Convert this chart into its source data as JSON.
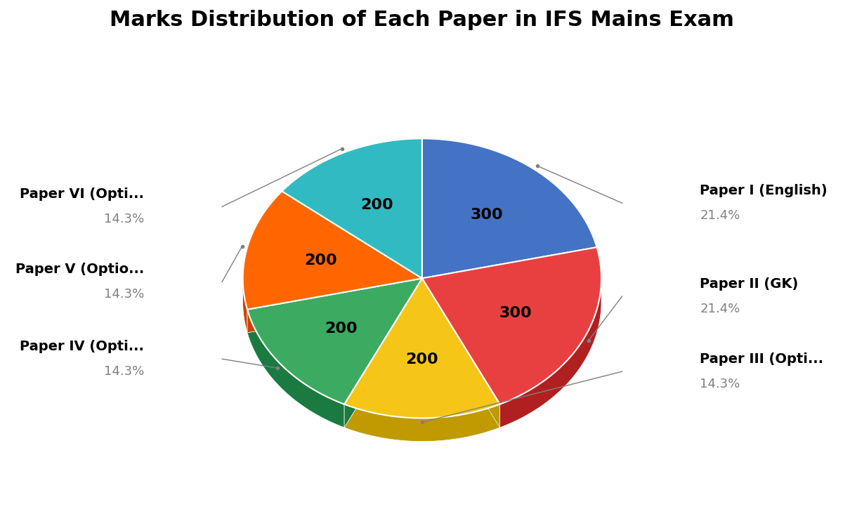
{
  "title": "Marks Distribution of Each Paper in IFS Mains Exam",
  "title_fontsize": 22,
  "labels": [
    "Paper I (English)",
    "Paper II (GK)",
    "Paper III (Opti...",
    "Paper IV (Opti...",
    "Paper V (Optio...",
    "Paper VI (Opti..."
  ],
  "values": [
    300,
    300,
    200,
    200,
    200,
    200
  ],
  "percentages": [
    "21.4%",
    "21.4%",
    "14.3%",
    "14.3%",
    "14.3%",
    "14.3%"
  ],
  "wedge_labels": [
    "300",
    "300",
    "200",
    "200",
    "200",
    "200"
  ],
  "colors": [
    "#4472C4",
    "#E84040",
    "#F5C518",
    "#3DAA62",
    "#FF6600",
    "#31BAC1"
  ],
  "shadow_colors": [
    "#2255A0",
    "#B02020",
    "#C09A00",
    "#1A7A40",
    "#CC4400",
    "#1A8A90"
  ],
  "background_color": "#FFFFFF",
  "label_fontsize": 14,
  "pct_fontsize": 13,
  "wedge_label_fontsize": 16,
  "startangle": 90,
  "depth": 0.08
}
